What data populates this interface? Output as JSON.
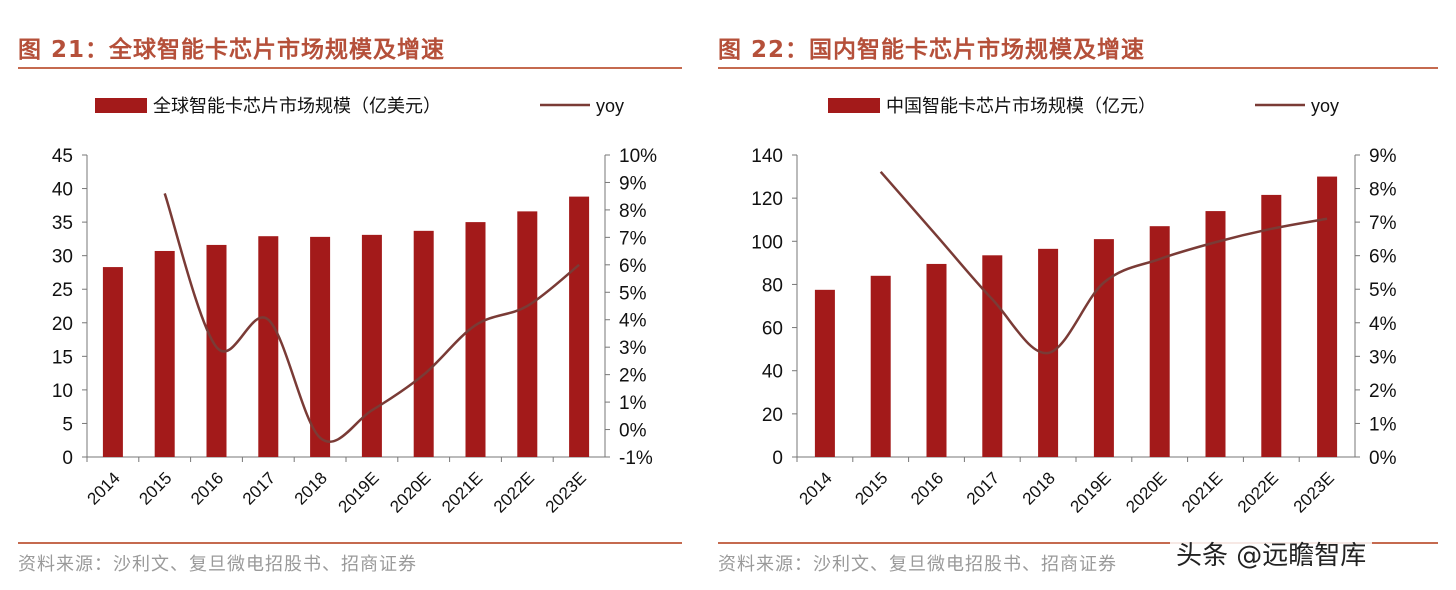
{
  "charts_meta": [
    {
      "title": "图 21：全球智能卡芯片市场规模及增速",
      "source": "资料来源：沙利文、复旦微电招股书、招商证券"
    },
    {
      "title": "图 22：国内智能卡芯片市场规模及增速",
      "source": "资料来源：沙利文、复旦微电招股书、招商证券"
    }
  ],
  "watermark": "头条 @远瞻智库",
  "colors": {
    "bar": "#a31a1a",
    "line": "#7a3b36",
    "accent": "#c56a4f"
  },
  "chart_data": [
    {
      "type": "bar+line",
      "categories": [
        "2014",
        "2015",
        "2016",
        "2017",
        "2018",
        "2019E",
        "2020E",
        "2021E",
        "2022E",
        "2023E"
      ],
      "series": [
        {
          "name": "全球智能卡芯片市场规模（亿美元）",
          "type": "bar",
          "axis": "left",
          "values": [
            28.3,
            30.7,
            31.6,
            32.9,
            32.8,
            33.1,
            33.7,
            35.0,
            36.6,
            38.8
          ]
        },
        {
          "name": "yoy",
          "type": "line",
          "axis": "right",
          "values": [
            null,
            8.6,
            3.0,
            4.0,
            -0.3,
            0.7,
            2.0,
            3.8,
            4.5,
            6.0
          ]
        }
      ],
      "ylim": [
        0,
        45
      ],
      "yticks": [
        "0",
        "5",
        "10",
        "15",
        "20",
        "25",
        "30",
        "35",
        "40",
        "45"
      ],
      "y2lim": [
        -1,
        10
      ],
      "y2ticks": [
        "-1%",
        "0%",
        "1%",
        "2%",
        "3%",
        "4%",
        "5%",
        "6%",
        "7%",
        "8%",
        "9%",
        "10%"
      ],
      "legend": "top",
      "grid": false
    },
    {
      "type": "bar+line",
      "categories": [
        "2014",
        "2015",
        "2016",
        "2017",
        "2018",
        "2019E",
        "2020E",
        "2021E",
        "2022E",
        "2023E"
      ],
      "series": [
        {
          "name": "中国智能卡芯片市场规模（亿元）",
          "type": "bar",
          "axis": "left",
          "values": [
            77.5,
            84,
            89.5,
            93.5,
            96.5,
            101,
            107,
            114,
            121.5,
            130
          ]
        },
        {
          "name": "yoy",
          "type": "line",
          "axis": "right",
          "values": [
            null,
            8.5,
            6.6,
            4.7,
            3.1,
            5.2,
            5.9,
            6.4,
            6.8,
            7.1
          ]
        }
      ],
      "ylim": [
        0,
        140
      ],
      "yticks": [
        "0",
        "20",
        "40",
        "60",
        "80",
        "100",
        "120",
        "140"
      ],
      "y2lim": [
        0,
        9
      ],
      "y2ticks": [
        "0%",
        "1%",
        "2%",
        "3%",
        "4%",
        "5%",
        "6%",
        "7%",
        "8%",
        "9%"
      ],
      "legend": "top",
      "grid": false
    }
  ]
}
